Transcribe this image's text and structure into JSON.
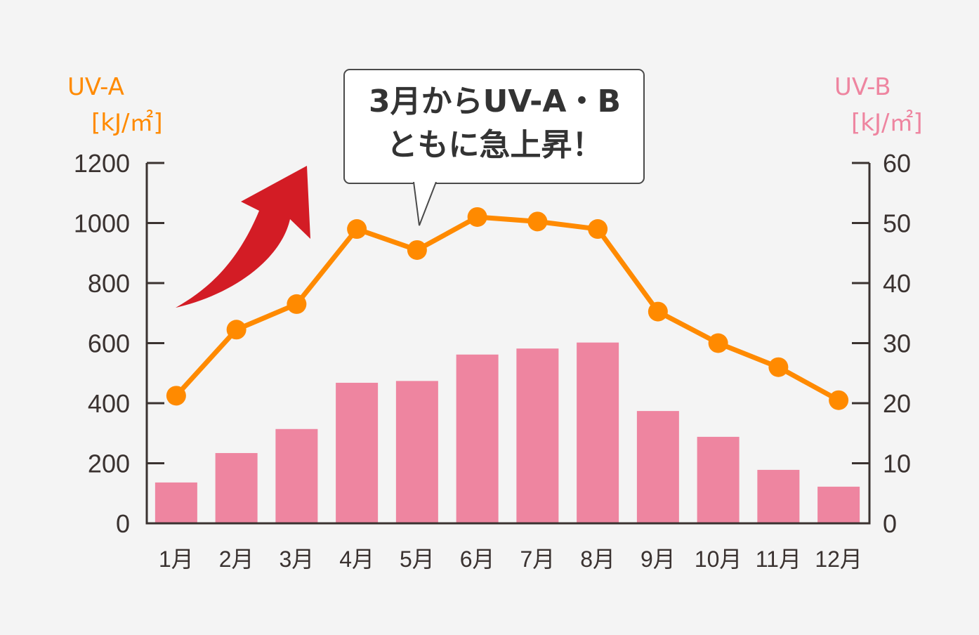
{
  "colors": {
    "background": "#f4f4f4",
    "uv_a_line": "#ff8a00",
    "uv_b_bar": "#ee85a0",
    "arrow": "#d31c25",
    "axis": "#3a3230",
    "callout_border": "#4a4a4a"
  },
  "left_axis": {
    "title": "UV-A",
    "unit": "[kJ/㎡]"
  },
  "right_axis": {
    "title": "UV-B",
    "unit": "[kJ/㎡]"
  },
  "callout": {
    "line1": "3月からUV-A・B",
    "line2": "ともに急上昇！"
  },
  "arrow_icon": "trend-up-arrow",
  "chart_data": {
    "type": "bar+line",
    "title": "",
    "annotation": "3月からUV-A・B ともに急上昇！",
    "categories": [
      "1月",
      "2月",
      "3月",
      "4月",
      "5月",
      "6月",
      "7月",
      "8月",
      "9月",
      "10月",
      "11月",
      "12月"
    ],
    "series": [
      {
        "name": "UV-A",
        "type": "line",
        "axis": "left",
        "unit": "kJ/㎡",
        "color": "#ff8a00",
        "values": [
          425,
          645,
          730,
          980,
          910,
          1020,
          1005,
          980,
          705,
          600,
          520,
          410
        ]
      },
      {
        "name": "UV-B",
        "type": "bar",
        "axis": "right",
        "unit": "kJ/㎡",
        "color": "#ee85a0",
        "values": [
          6.8,
          11.7,
          15.7,
          23.4,
          23.7,
          28.1,
          29.1,
          30.1,
          18.7,
          14.4,
          8.9,
          6.1
        ]
      }
    ],
    "y_left": {
      "label": "UV-A [kJ/㎡]",
      "ticks": [
        0,
        200,
        400,
        600,
        800,
        1000,
        1200
      ],
      "ylim": [
        0,
        1200
      ]
    },
    "y_right": {
      "label": "UV-B [kJ/㎡]",
      "ticks": [
        0,
        10,
        20,
        30,
        40,
        50,
        60
      ],
      "ylim": [
        0,
        60
      ]
    },
    "xlabel": "",
    "grid": false,
    "legend": "none (axis titles colored by series)"
  }
}
